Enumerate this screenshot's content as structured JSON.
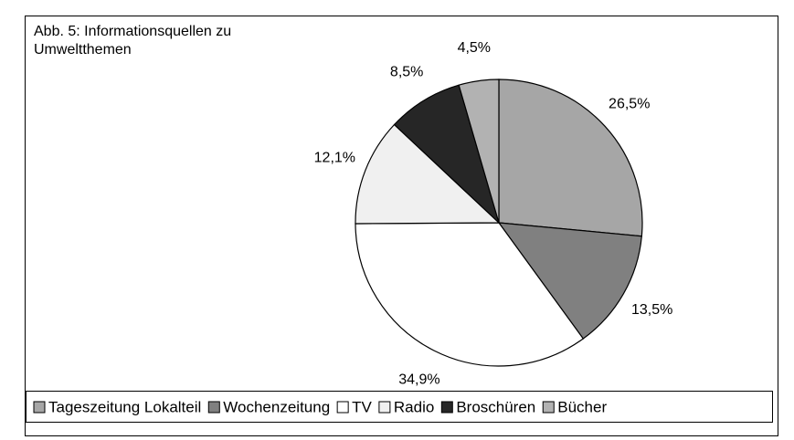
{
  "chart_data": {
    "type": "pie",
    "title": [
      "Abb. 5: Informationsquellen zu",
      "Umweltthemen"
    ],
    "categories": [
      "Tageszeitung Lokalteil",
      "Wochenzeitung",
      "TV",
      "Radio",
      "Broschüren",
      "Bücher"
    ],
    "values": [
      26.5,
      13.5,
      34.9,
      12.1,
      8.5,
      4.5
    ],
    "value_labels": [
      "26,5%",
      "13,5%",
      "34,9%",
      "12,1%",
      "8,5%",
      "4,5%"
    ],
    "colors": [
      "#a6a6a6",
      "#808080",
      "#ffffff",
      "#f0f0f0",
      "#262626",
      "#b2b2b2"
    ],
    "legend": "bottom"
  }
}
